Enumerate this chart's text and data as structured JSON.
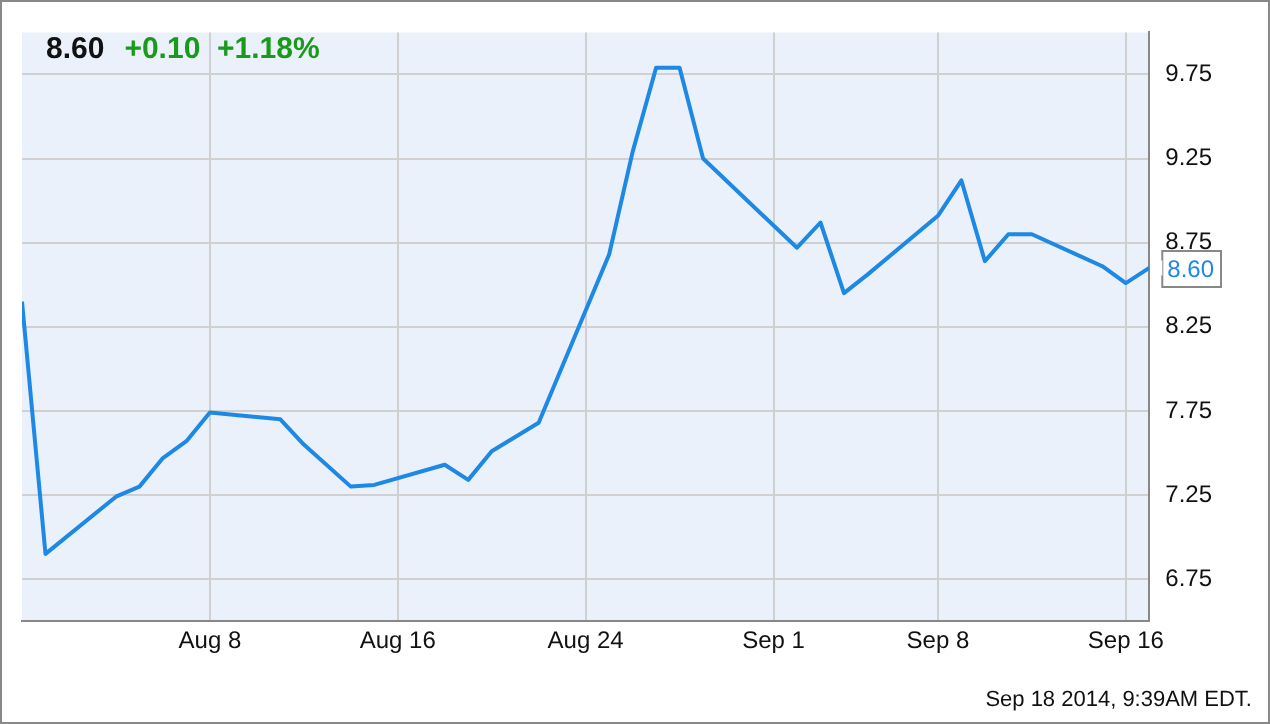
{
  "chart_data": {
    "type": "line",
    "title": "8.60",
    "subtitle": "+0.10  +1.18%",
    "annotations": [
      "Sep 18 2014, 9:39AM EDT."
    ],
    "x": [
      "2014-07-31",
      "2014-08-01",
      "2014-08-04",
      "2014-08-05",
      "2014-08-06",
      "2014-08-07",
      "2014-08-08",
      "2014-08-11",
      "2014-08-12",
      "2014-08-14",
      "2014-08-15",
      "2014-08-18",
      "2014-08-19",
      "2014-08-20",
      "2014-08-22",
      "2014-08-25",
      "2014-08-26",
      "2014-08-27",
      "2014-08-28",
      "2014-08-29",
      "2014-09-02",
      "2014-09-03",
      "2014-09-04",
      "2014-09-05",
      "2014-09-08",
      "2014-09-09",
      "2014-09-10",
      "2014-09-11",
      "2014-09-12",
      "2014-09-15",
      "2014-09-16",
      "2014-09-17"
    ],
    "series": [
      {
        "color": "#1e88e5",
        "values": [
          8.4,
          6.9,
          7.24,
          7.3,
          7.47,
          7.57,
          7.74,
          7.7,
          7.55,
          7.3,
          7.31,
          7.43,
          7.34,
          7.51,
          7.68,
          8.68,
          9.29,
          9.79,
          9.79,
          9.25,
          8.72,
          8.87,
          8.45,
          8.56,
          8.91,
          9.12,
          8.64,
          8.8,
          8.8,
          8.61,
          8.51,
          8.6
        ],
        "value_labels": [
          null,
          null,
          null,
          null,
          null,
          null,
          null,
          null,
          null,
          null,
          null,
          null,
          null,
          null,
          null,
          null,
          null,
          null,
          null,
          null,
          null,
          null,
          null,
          null,
          null,
          null,
          null,
          null,
          null,
          null,
          null,
          "8.60"
        ]
      }
    ],
    "xlim": [
      "2014-07-31",
      "2014-09-17"
    ],
    "xticks": [
      {
        "value": "2014-08-08",
        "label": "Aug 8"
      },
      {
        "value": "2014-08-16",
        "label": "Aug 16"
      },
      {
        "value": "2014-08-24",
        "label": "Aug 24"
      },
      {
        "value": "2014-09-01",
        "label": "Sep 1"
      },
      {
        "value": "2014-09-08",
        "label": "Sep 8"
      },
      {
        "value": "2014-09-16",
        "label": "Sep 16"
      }
    ],
    "ylim": [
      6.5,
      10
    ],
    "yticks": [
      6.75,
      7.25,
      7.75,
      8.25,
      8.75,
      9.25,
      9.75
    ],
    "grid": true,
    "legend": false,
    "marker": "none",
    "line_style": "solid"
  }
}
